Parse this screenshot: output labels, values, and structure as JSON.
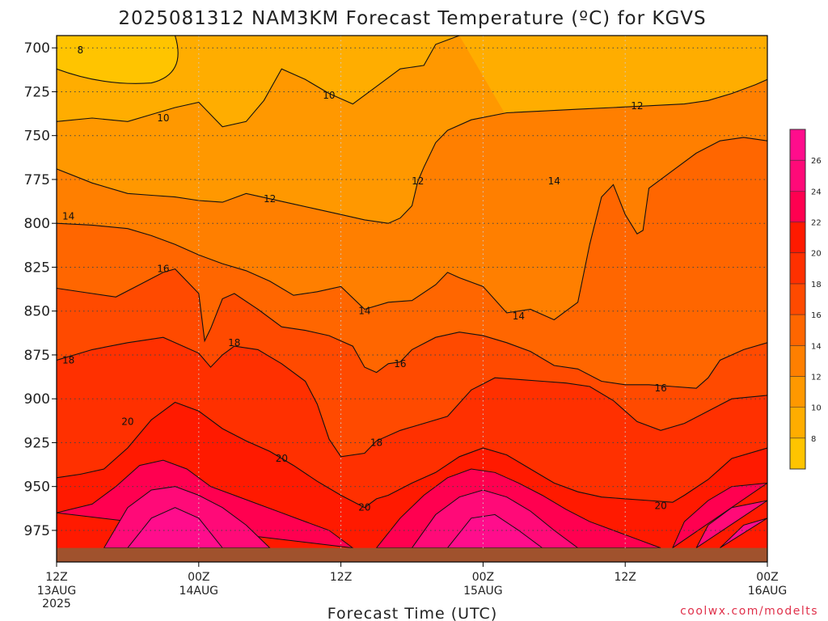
{
  "title": "2025081312 NAM3KM Forecast Temperature (ºC) for KGVS",
  "credit": "coolwx.com/modelts",
  "chart_data": {
    "type": "heatmap",
    "title": "2025081312 NAM3KM Forecast Temperature (ºC) for KGVS",
    "xlabel": "Forecast Time (UTC)",
    "ylabel": "",
    "x_ticks": [
      {
        "hour": 0,
        "label": "12Z",
        "sub": "13AUG",
        "sub2": "2025"
      },
      {
        "hour": 12,
        "label": "00Z",
        "sub": "14AUG",
        "sub2": ""
      },
      {
        "hour": 24,
        "label": "12Z",
        "sub": "",
        "sub2": ""
      },
      {
        "hour": 36,
        "label": "00Z",
        "sub": "15AUG",
        "sub2": ""
      },
      {
        "hour": 48,
        "label": "12Z",
        "sub": "",
        "sub2": ""
      },
      {
        "hour": 60,
        "label": "00Z",
        "sub": "16AUG",
        "sub2": ""
      }
    ],
    "xlim": [
      0,
      60
    ],
    "y_ticks": [
      700,
      725,
      750,
      775,
      800,
      825,
      850,
      875,
      900,
      925,
      950,
      975
    ],
    "ylim": [
      693,
      993
    ],
    "y_inverted": true,
    "grid": true,
    "surface_pressure_hpa": 985,
    "colorbar": {
      "levels": [
        6,
        8,
        10,
        12,
        14,
        16,
        18,
        20,
        22,
        24,
        26,
        28
      ],
      "tick_labels": [
        "8",
        "10",
        "12",
        "14",
        "16",
        "18",
        "20",
        "22",
        "24",
        "26"
      ],
      "colors": [
        "#ffc400",
        "#ffad00",
        "#ff9800",
        "#ff7f00",
        "#ff6600",
        "#ff4a00",
        "#ff3000",
        "#ff1a00",
        "#ff0050",
        "#ff0a78",
        "#ff0d8c"
      ]
    },
    "isotherms": [
      {
        "value": 10,
        "points": [
          [
            0,
            742
          ],
          [
            3,
            740
          ],
          [
            6,
            742
          ],
          [
            8,
            738
          ],
          [
            10,
            734
          ],
          [
            12,
            731
          ],
          [
            14,
            745
          ],
          [
            16,
            742
          ],
          [
            17.5,
            730
          ],
          [
            19,
            712
          ],
          [
            21,
            718
          ],
          [
            23,
            726
          ],
          [
            25,
            732
          ],
          [
            27,
            722
          ],
          [
            29,
            712
          ],
          [
            31,
            710
          ],
          [
            32,
            698
          ],
          [
            34,
            693
          ]
        ],
        "labels": [
          [
            9,
            740
          ],
          [
            23,
            727
          ]
        ]
      },
      {
        "value": 12,
        "points": [
          [
            0,
            769
          ],
          [
            3,
            777
          ],
          [
            6,
            783
          ],
          [
            8,
            784
          ],
          [
            10,
            785
          ],
          [
            12,
            787
          ],
          [
            14,
            788
          ],
          [
            16,
            783
          ],
          [
            18,
            786
          ],
          [
            20,
            789
          ],
          [
            22,
            792
          ],
          [
            24,
            795
          ],
          [
            26,
            798
          ],
          [
            28,
            800
          ],
          [
            29,
            797
          ],
          [
            30,
            790
          ],
          [
            30.5,
            776
          ],
          [
            31,
            768
          ],
          [
            32,
            754
          ],
          [
            33,
            747
          ],
          [
            35,
            741
          ],
          [
            38,
            737
          ],
          [
            41,
            736
          ],
          [
            44,
            735
          ],
          [
            47,
            734
          ],
          [
            50,
            733
          ],
          [
            53,
            732
          ],
          [
            55,
            730
          ],
          [
            57,
            726
          ],
          [
            59,
            721
          ],
          [
            60,
            718
          ]
        ],
        "labels": [
          [
            18,
            786
          ],
          [
            30.5,
            776
          ],
          [
            49,
            733
          ]
        ]
      },
      {
        "value": 14,
        "points": [
          [
            0,
            800
          ],
          [
            3,
            801
          ],
          [
            6,
            803
          ],
          [
            8,
            807
          ],
          [
            10,
            812
          ],
          [
            12,
            818
          ],
          [
            14,
            823
          ],
          [
            16,
            827
          ],
          [
            18,
            833
          ],
          [
            20,
            841
          ],
          [
            22,
            839
          ],
          [
            24,
            836
          ],
          [
            26,
            849
          ],
          [
            28,
            845
          ],
          [
            30,
            844
          ],
          [
            32,
            835
          ],
          [
            33,
            828
          ],
          [
            34,
            831
          ],
          [
            36,
            836
          ],
          [
            38,
            851
          ],
          [
            40,
            849
          ],
          [
            42,
            855
          ],
          [
            44,
            845
          ],
          [
            45,
            812
          ],
          [
            46,
            785
          ],
          [
            47,
            778
          ],
          [
            48,
            795
          ],
          [
            49,
            806
          ],
          [
            49.5,
            804
          ],
          [
            50,
            780
          ],
          [
            52,
            770
          ],
          [
            54,
            760
          ],
          [
            56,
            753
          ],
          [
            58,
            751
          ],
          [
            60,
            753
          ]
        ],
        "labels": [
          [
            1,
            796
          ],
          [
            26,
            850
          ],
          [
            39,
            853
          ],
          [
            42,
            776
          ]
        ]
      },
      {
        "value": 16,
        "points": [
          [
            0,
            837
          ],
          [
            3,
            840
          ],
          [
            5,
            842
          ],
          [
            7,
            835
          ],
          [
            9,
            828
          ],
          [
            10,
            826
          ],
          [
            12,
            840
          ],
          [
            12.5,
            867
          ],
          [
            13,
            860
          ],
          [
            14,
            843
          ],
          [
            15,
            840
          ],
          [
            17,
            849
          ],
          [
            19,
            859
          ],
          [
            21,
            861
          ],
          [
            23,
            864
          ],
          [
            25,
            870
          ],
          [
            26,
            882
          ],
          [
            27,
            885
          ],
          [
            28,
            880
          ],
          [
            29,
            879
          ],
          [
            30,
            872
          ],
          [
            32,
            865
          ],
          [
            34,
            862
          ],
          [
            36,
            864
          ],
          [
            38,
            868
          ],
          [
            40,
            873
          ],
          [
            42,
            881
          ],
          [
            44,
            883
          ],
          [
            46,
            890
          ],
          [
            48,
            892
          ],
          [
            50,
            892
          ],
          [
            52,
            893
          ],
          [
            54,
            894
          ],
          [
            55,
            888
          ],
          [
            56,
            878
          ],
          [
            58,
            872
          ],
          [
            60,
            868
          ]
        ],
        "labels": [
          [
            9,
            826
          ],
          [
            29,
            880
          ],
          [
            51,
            894
          ]
        ]
      },
      {
        "value": 18,
        "points": [
          [
            0,
            878
          ],
          [
            3,
            872
          ],
          [
            6,
            868
          ],
          [
            8,
            866
          ],
          [
            9,
            865
          ],
          [
            10,
            868
          ],
          [
            11,
            871
          ],
          [
            12,
            874
          ],
          [
            13,
            882
          ],
          [
            14,
            875
          ],
          [
            15,
            870
          ],
          [
            17,
            872
          ],
          [
            19,
            880
          ],
          [
            21,
            890
          ],
          [
            22,
            903
          ],
          [
            23,
            923
          ],
          [
            24,
            933
          ],
          [
            26,
            931
          ],
          [
            27,
            924
          ],
          [
            29,
            918
          ],
          [
            31,
            914
          ],
          [
            33,
            910
          ],
          [
            35,
            895
          ],
          [
            37,
            888
          ],
          [
            39,
            889
          ],
          [
            41,
            890
          ],
          [
            43,
            891
          ],
          [
            45,
            893
          ],
          [
            47,
            901
          ],
          [
            49,
            913
          ],
          [
            51,
            918
          ],
          [
            53,
            914
          ],
          [
            55,
            907
          ],
          [
            57,
            900
          ],
          [
            60,
            898
          ]
        ],
        "labels": [
          [
            1,
            878
          ],
          [
            15,
            868
          ],
          [
            27,
            925
          ]
        ]
      },
      {
        "value": 20,
        "points": [
          [
            0,
            945
          ],
          [
            2,
            943
          ],
          [
            4,
            940
          ],
          [
            6,
            928
          ],
          [
            8,
            912
          ],
          [
            10,
            902
          ],
          [
            12,
            907
          ],
          [
            14,
            917
          ],
          [
            16,
            924
          ],
          [
            18,
            930
          ],
          [
            20,
            938
          ],
          [
            22,
            947
          ],
          [
            24,
            955
          ],
          [
            26,
            962
          ],
          [
            27,
            957
          ],
          [
            28,
            955
          ],
          [
            30,
            948
          ],
          [
            32,
            942
          ],
          [
            34,
            933
          ],
          [
            36,
            928
          ],
          [
            38,
            932
          ],
          [
            40,
            940
          ],
          [
            42,
            948
          ],
          [
            44,
            953
          ],
          [
            46,
            956
          ],
          [
            48,
            957
          ],
          [
            50,
            958
          ],
          [
            52,
            959
          ],
          [
            53,
            955
          ],
          [
            55,
            946
          ],
          [
            57,
            934
          ],
          [
            60,
            928
          ]
        ],
        "labels": [
          [
            6,
            913
          ],
          [
            19,
            934
          ],
          [
            26,
            962
          ],
          [
            51,
            961
          ]
        ]
      }
    ],
    "color_bands": [
      {
        "min": 6,
        "max": 8,
        "approx_region": "top-left corner, 12Z 13AUG–00Z 14AUG at 693–720 hPa"
      },
      {
        "min": 8,
        "max": 10,
        "approx_region": "upper levels 700–745 hPa"
      },
      {
        "min": 10,
        "max": 12,
        "approx_region": "about 720–785 hPa"
      },
      {
        "min": 12,
        "max": 14,
        "approx_region": "about 760–805 hPa"
      },
      {
        "min": 14,
        "max": 16,
        "approx_region": "about 800–845 hPa"
      },
      {
        "min": 16,
        "max": 18,
        "approx_region": "about 835–880 hPa"
      },
      {
        "min": 18,
        "max": 20,
        "approx_region": "about 870–935 hPa"
      },
      {
        "min": 20,
        "max": 28,
        "approx_region": "boundary layer 910–985 hPa, warmest near 00Z"
      }
    ]
  }
}
